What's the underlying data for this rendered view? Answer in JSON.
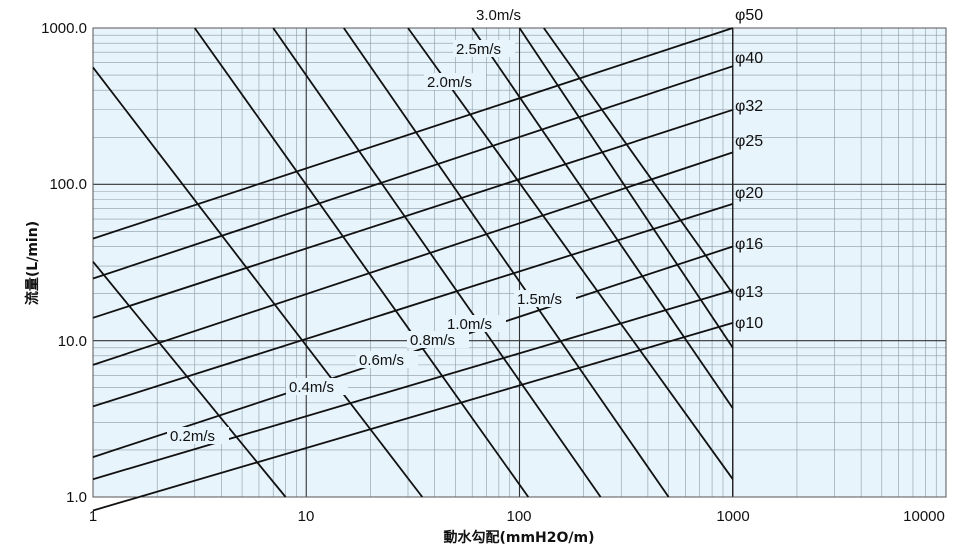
{
  "chart_data": {
    "type": "line",
    "title": "",
    "xlabel": "動水勾配(mmH2O/m)",
    "ylabel": "流量(L/min)",
    "x_scale": "log",
    "y_scale": "log",
    "xlim": [
      1,
      10000
    ],
    "ylim": [
      1,
      1000
    ],
    "x_ticks": [
      "1",
      "10",
      "100",
      "1000",
      "10000"
    ],
    "y_ticks": [
      "1.0",
      "10.0",
      "100.0",
      "1000.0"
    ],
    "grid": true,
    "background_color": "#e8f4fc",
    "diameter_series": [
      {
        "label": "φ10",
        "points": [
          [
            1,
            0.82
          ],
          [
            1000,
            13
          ]
        ]
      },
      {
        "label": "φ13",
        "points": [
          [
            1,
            1.3
          ],
          [
            1000,
            21
          ]
        ]
      },
      {
        "label": "φ16",
        "points": [
          [
            1,
            1.8
          ],
          [
            1000,
            40
          ]
        ]
      },
      {
        "label": "φ20",
        "points": [
          [
            1,
            3.8
          ],
          [
            1000,
            75
          ]
        ]
      },
      {
        "label": "φ25",
        "points": [
          [
            1,
            7
          ],
          [
            1000,
            160
          ]
        ]
      },
      {
        "label": "φ32",
        "points": [
          [
            1,
            14
          ],
          [
            1000,
            300
          ]
        ]
      },
      {
        "label": "φ40",
        "points": [
          [
            1,
            25
          ],
          [
            1000,
            570
          ]
        ]
      },
      {
        "label": "φ50",
        "points": [
          [
            1,
            45
          ],
          [
            1000,
            1000
          ]
        ]
      }
    ],
    "velocity_series": [
      {
        "label": "0.2m/s",
        "points": [
          [
            1,
            32
          ],
          [
            8,
            1
          ]
        ]
      },
      {
        "label": "0.4m/s",
        "points": [
          [
            1,
            560
          ],
          [
            35,
            1
          ]
        ]
      },
      {
        "label": "0.6m/s",
        "points": [
          [
            3,
            1000
          ],
          [
            110,
            1
          ]
        ]
      },
      {
        "label": "0.8m/s",
        "points": [
          [
            7,
            1000
          ],
          [
            240,
            1
          ]
        ]
      },
      {
        "label": "1.0m/s",
        "points": [
          [
            15,
            1000
          ],
          [
            500,
            1
          ]
        ]
      },
      {
        "label": "1.5m/s",
        "points": [
          [
            30,
            1000
          ],
          [
            1000,
            1.3
          ]
        ]
      },
      {
        "label": "2.0m/s",
        "points": [
          [
            60,
            1000
          ],
          [
            1000,
            3.7
          ]
        ]
      },
      {
        "label": "2.5m/s",
        "points": [
          [
            100,
            1000
          ],
          [
            1000,
            9
          ]
        ]
      },
      {
        "label": "3.0m/s",
        "points": [
          [
            130,
            1000
          ],
          [
            1000,
            20
          ]
        ]
      }
    ]
  }
}
